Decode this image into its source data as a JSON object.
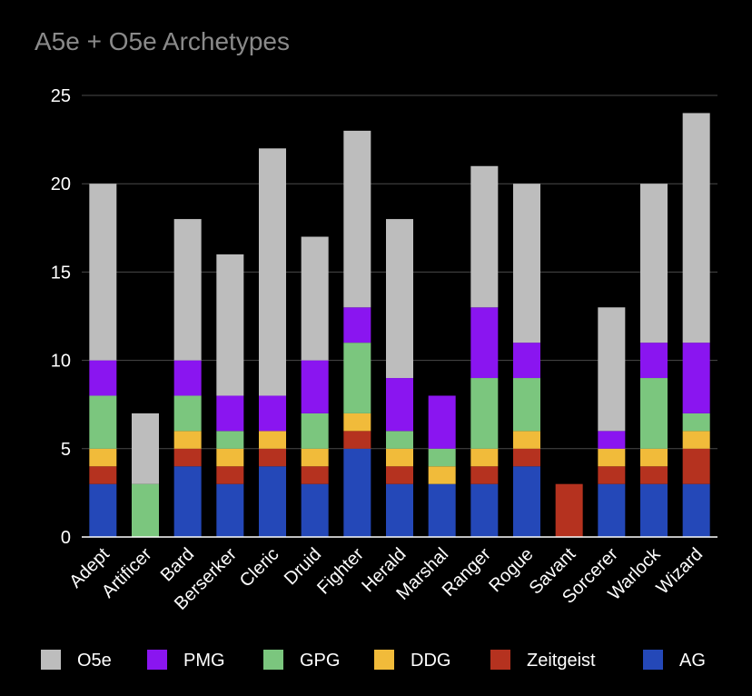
{
  "chart_data": {
    "type": "bar",
    "stacked": true,
    "title": "A5e + O5e Archetypes",
    "xlabel": "",
    "ylabel": "",
    "ylim": [
      0,
      25
    ],
    "yticks": [
      0,
      5,
      10,
      15,
      20,
      25
    ],
    "grid": true,
    "legend_position": "bottom",
    "categories": [
      "Adept",
      "Artificer",
      "Bard",
      "Berserker",
      "Cleric",
      "Druid",
      "Fighter",
      "Herald",
      "Marshal",
      "Ranger",
      "Rogue",
      "Savant",
      "Sorcerer",
      "Warlock",
      "Wizard"
    ],
    "series": [
      {
        "name": "AG",
        "color": "#2448b8",
        "values": [
          3,
          0,
          4,
          3,
          4,
          3,
          5,
          3,
          3,
          3,
          4,
          0,
          3,
          3,
          3
        ]
      },
      {
        "name": "Zeitgeist",
        "color": "#b5321f",
        "values": [
          1,
          0,
          1,
          1,
          1,
          1,
          1,
          1,
          0,
          1,
          1,
          3,
          1,
          1,
          2
        ]
      },
      {
        "name": "DDG",
        "color": "#f1bb3a",
        "values": [
          1,
          0,
          1,
          1,
          1,
          1,
          1,
          1,
          1,
          1,
          1,
          0,
          1,
          1,
          1
        ]
      },
      {
        "name": "GPG",
        "color": "#7bc67e",
        "values": [
          3,
          3,
          2,
          1,
          0,
          2,
          4,
          1,
          1,
          4,
          3,
          0,
          0,
          4,
          1
        ]
      },
      {
        "name": "PMG",
        "color": "#8a15f0",
        "values": [
          2,
          0,
          2,
          2,
          2,
          3,
          2,
          3,
          3,
          4,
          2,
          0,
          1,
          2,
          4
        ]
      },
      {
        "name": "O5e",
        "color": "#bdbdbd",
        "values": [
          10,
          4,
          8,
          8,
          14,
          7,
          10,
          9,
          0,
          8,
          9,
          0,
          7,
          9,
          13
        ]
      }
    ],
    "legend_order": [
      "O5e",
      "PMG",
      "GPG",
      "DDG",
      "Zeitgeist",
      "AG"
    ]
  }
}
